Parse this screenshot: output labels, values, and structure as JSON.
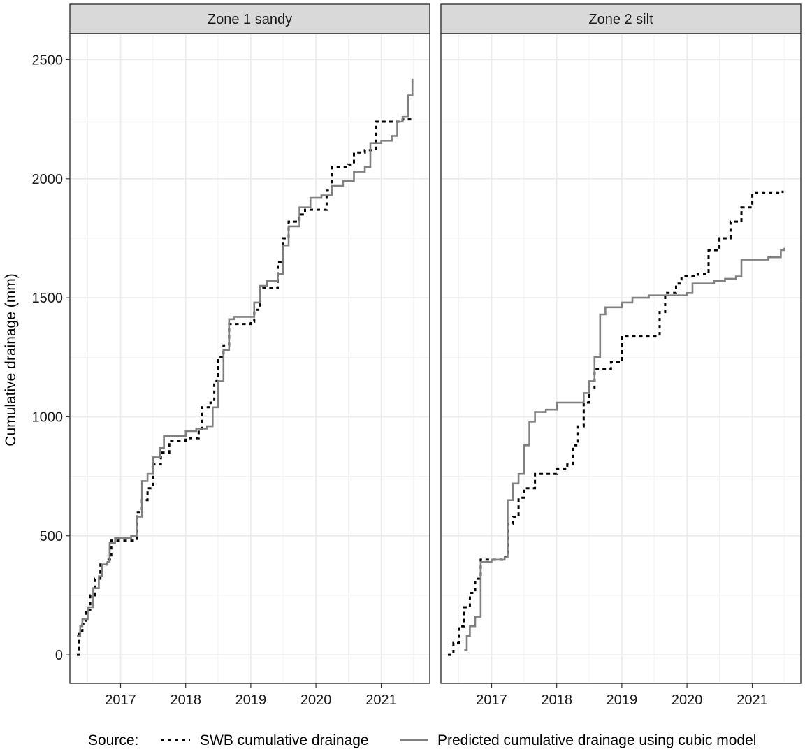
{
  "chart_data": {
    "type": "line",
    "facets": [
      "Zone 1 sandy",
      "Zone 2 silt"
    ],
    "ylabel": "Cumulative drainage (mm)",
    "xlabel": "",
    "ylim": [
      -120,
      2610
    ],
    "xlim": [
      "2016-03-23",
      "2021-09-30"
    ],
    "y_ticks": [
      0,
      500,
      1000,
      1500,
      2000,
      2500
    ],
    "x_ticks": [
      "2017",
      "2018",
      "2019",
      "2020",
      "2021"
    ],
    "x_tick_dates": [
      "2017-01-01",
      "2018-01-01",
      "2019-01-01",
      "2020-01-01",
      "2021-01-01"
    ],
    "grid": true,
    "legend": {
      "position": "bottom",
      "title": "Source:",
      "items": [
        {
          "label": "SWB cumulative drainage",
          "color": "#000000",
          "dash": "dotted"
        },
        {
          "label": "Predicted cumulative drainage using cubic model",
          "color": "#808080",
          "dash": "solid"
        }
      ]
    },
    "panels": [
      {
        "name": "Zone 1 sandy",
        "series": [
          {
            "name": "SWB cumulative drainage",
            "color": "#000000",
            "dash": "dotted",
            "points": [
              [
                "2016-05-01",
                0
              ],
              [
                "2016-05-10",
                0
              ],
              [
                "2016-05-15",
                100
              ],
              [
                "2016-06-01",
                130
              ],
              [
                "2016-06-20",
                190
              ],
              [
                "2016-07-15",
                250
              ],
              [
                "2016-08-10",
                320
              ],
              [
                "2016-09-10",
                380
              ],
              [
                "2016-10-15",
                400
              ],
              [
                "2016-11-10",
                480
              ],
              [
                "2017-01-01",
                480
              ],
              [
                "2017-03-20",
                480
              ],
              [
                "2017-04-01",
                600
              ],
              [
                "2017-05-01",
                650
              ],
              [
                "2017-06-01",
                700
              ],
              [
                "2017-07-01",
                800
              ],
              [
                "2017-08-15",
                850
              ],
              [
                "2017-10-01",
                900
              ],
              [
                "2018-01-01",
                910
              ],
              [
                "2018-03-15",
                950
              ],
              [
                "2018-04-01",
                1040
              ],
              [
                "2018-05-20",
                1060
              ],
              [
                "2018-06-10",
                1150
              ],
              [
                "2018-07-01",
                1250
              ],
              [
                "2018-08-01",
                1300
              ],
              [
                "2018-09-01",
                1390
              ],
              [
                "2019-01-01",
                1400
              ],
              [
                "2019-01-20",
                1450
              ],
              [
                "2019-02-20",
                1540
              ],
              [
                "2019-05-01",
                1540
              ],
              [
                "2019-06-01",
                1650
              ],
              [
                "2019-07-01",
                1750
              ],
              [
                "2019-08-01",
                1820
              ],
              [
                "2019-10-01",
                1850
              ],
              [
                "2019-11-01",
                1870
              ],
              [
                "2020-02-01",
                1870
              ],
              [
                "2020-03-01",
                1950
              ],
              [
                "2020-04-01",
                2050
              ],
              [
                "2020-07-01",
                2060
              ],
              [
                "2020-08-01",
                2110
              ],
              [
                "2020-10-01",
                2120
              ],
              [
                "2020-12-01",
                2240
              ],
              [
                "2021-04-01",
                2240
              ],
              [
                "2021-05-01",
                2250
              ],
              [
                "2021-06-20",
                2260
              ]
            ]
          },
          {
            "name": "Predicted cumulative drainage using cubic model",
            "color": "#808080",
            "dash": "solid",
            "points": [
              [
                "2016-05-01",
                80
              ],
              [
                "2016-05-20",
                120
              ],
              [
                "2016-06-01",
                150
              ],
              [
                "2016-07-01",
                200
              ],
              [
                "2016-08-01",
                280
              ],
              [
                "2016-09-01",
                330
              ],
              [
                "2016-09-20",
                380
              ],
              [
                "2016-10-20",
                390
              ],
              [
                "2016-11-01",
                470
              ],
              [
                "2016-12-01",
                490
              ],
              [
                "2017-03-01",
                500
              ],
              [
                "2017-04-01",
                580
              ],
              [
                "2017-05-01",
                730
              ],
              [
                "2017-06-01",
                760
              ],
              [
                "2017-07-01",
                830
              ],
              [
                "2017-08-10",
                870
              ],
              [
                "2017-09-01",
                920
              ],
              [
                "2018-01-01",
                940
              ],
              [
                "2018-03-01",
                950
              ],
              [
                "2018-05-01",
                960
              ],
              [
                "2018-06-01",
                1040
              ],
              [
                "2018-07-01",
                1150
              ],
              [
                "2018-08-01",
                1280
              ],
              [
                "2018-09-01",
                1410
              ],
              [
                "2018-10-01",
                1420
              ],
              [
                "2019-01-01",
                1420
              ],
              [
                "2019-01-20",
                1480
              ],
              [
                "2019-02-20",
                1550
              ],
              [
                "2019-04-01",
                1570
              ],
              [
                "2019-06-01",
                1600
              ],
              [
                "2019-07-01",
                1720
              ],
              [
                "2019-08-01",
                1800
              ],
              [
                "2019-10-01",
                1880
              ],
              [
                "2019-12-01",
                1920
              ],
              [
                "2020-02-01",
                1930
              ],
              [
                "2020-04-01",
                1970
              ],
              [
                "2020-06-01",
                1990
              ],
              [
                "2020-08-01",
                2030
              ],
              [
                "2020-10-01",
                2050
              ],
              [
                "2020-11-01",
                2150
              ],
              [
                "2021-01-01",
                2160
              ],
              [
                "2021-03-01",
                2180
              ],
              [
                "2021-04-01",
                2240
              ],
              [
                "2021-05-01",
                2260
              ],
              [
                "2021-06-01",
                2350
              ],
              [
                "2021-06-25",
                2420
              ]
            ]
          }
        ]
      },
      {
        "name": "Zone 2 silt",
        "series": [
          {
            "name": "SWB cumulative drainage",
            "color": "#000000",
            "dash": "dotted",
            "points": [
              [
                "2016-05-01",
                0
              ],
              [
                "2016-06-01",
                50
              ],
              [
                "2016-07-01",
                120
              ],
              [
                "2016-08-01",
                200
              ],
              [
                "2016-09-01",
                260
              ],
              [
                "2016-10-01",
                320
              ],
              [
                "2016-11-01",
                400
              ],
              [
                "2017-01-01",
                400
              ],
              [
                "2017-03-01",
                410
              ],
              [
                "2017-04-01",
                550
              ],
              [
                "2017-05-01",
                580
              ],
              [
                "2017-06-01",
                660
              ],
              [
                "2017-07-01",
                700
              ],
              [
                "2017-09-01",
                760
              ],
              [
                "2018-01-01",
                780
              ],
              [
                "2018-03-01",
                800
              ],
              [
                "2018-04-01",
                880
              ],
              [
                "2018-05-01",
                960
              ],
              [
                "2018-06-01",
                1060
              ],
              [
                "2018-07-01",
                1120
              ],
              [
                "2018-08-01",
                1200
              ],
              [
                "2018-11-01",
                1230
              ],
              [
                "2019-01-01",
                1340
              ],
              [
                "2019-06-01",
                1340
              ],
              [
                "2019-08-01",
                1440
              ],
              [
                "2019-09-01",
                1520
              ],
              [
                "2019-11-01",
                1560
              ],
              [
                "2019-12-01",
                1590
              ],
              [
                "2020-03-01",
                1600
              ],
              [
                "2020-05-01",
                1700
              ],
              [
                "2020-07-01",
                1750
              ],
              [
                "2020-09-01",
                1820
              ],
              [
                "2020-11-01",
                1880
              ],
              [
                "2021-01-01",
                1940
              ],
              [
                "2021-06-20",
                1950
              ]
            ]
          },
          {
            "name": "Predicted cumulative drainage using cubic model",
            "color": "#808080",
            "dash": "solid",
            "points": [
              [
                "2016-08-01",
                20
              ],
              [
                "2016-08-15",
                80
              ],
              [
                "2016-09-01",
                120
              ],
              [
                "2016-10-01",
                160
              ],
              [
                "2016-11-01",
                390
              ],
              [
                "2017-01-01",
                400
              ],
              [
                "2017-03-15",
                410
              ],
              [
                "2017-04-01",
                650
              ],
              [
                "2017-05-01",
                720
              ],
              [
                "2017-06-01",
                760
              ],
              [
                "2017-07-01",
                880
              ],
              [
                "2017-08-01",
                980
              ],
              [
                "2017-09-01",
                1020
              ],
              [
                "2017-11-01",
                1030
              ],
              [
                "2018-01-01",
                1060
              ],
              [
                "2018-06-01",
                1100
              ],
              [
                "2018-07-01",
                1150
              ],
              [
                "2018-08-01",
                1250
              ],
              [
                "2018-09-01",
                1430
              ],
              [
                "2018-10-01",
                1460
              ],
              [
                "2019-01-01",
                1480
              ],
              [
                "2019-03-01",
                1500
              ],
              [
                "2019-06-01",
                1510
              ],
              [
                "2020-01-01",
                1520
              ],
              [
                "2020-02-01",
                1560
              ],
              [
                "2020-06-01",
                1570
              ],
              [
                "2020-08-01",
                1580
              ],
              [
                "2020-10-01",
                1590
              ],
              [
                "2020-11-01",
                1660
              ],
              [
                "2021-04-01",
                1670
              ],
              [
                "2021-06-10",
                1700
              ],
              [
                "2021-06-30",
                1710
              ]
            ]
          }
        ]
      }
    ]
  }
}
